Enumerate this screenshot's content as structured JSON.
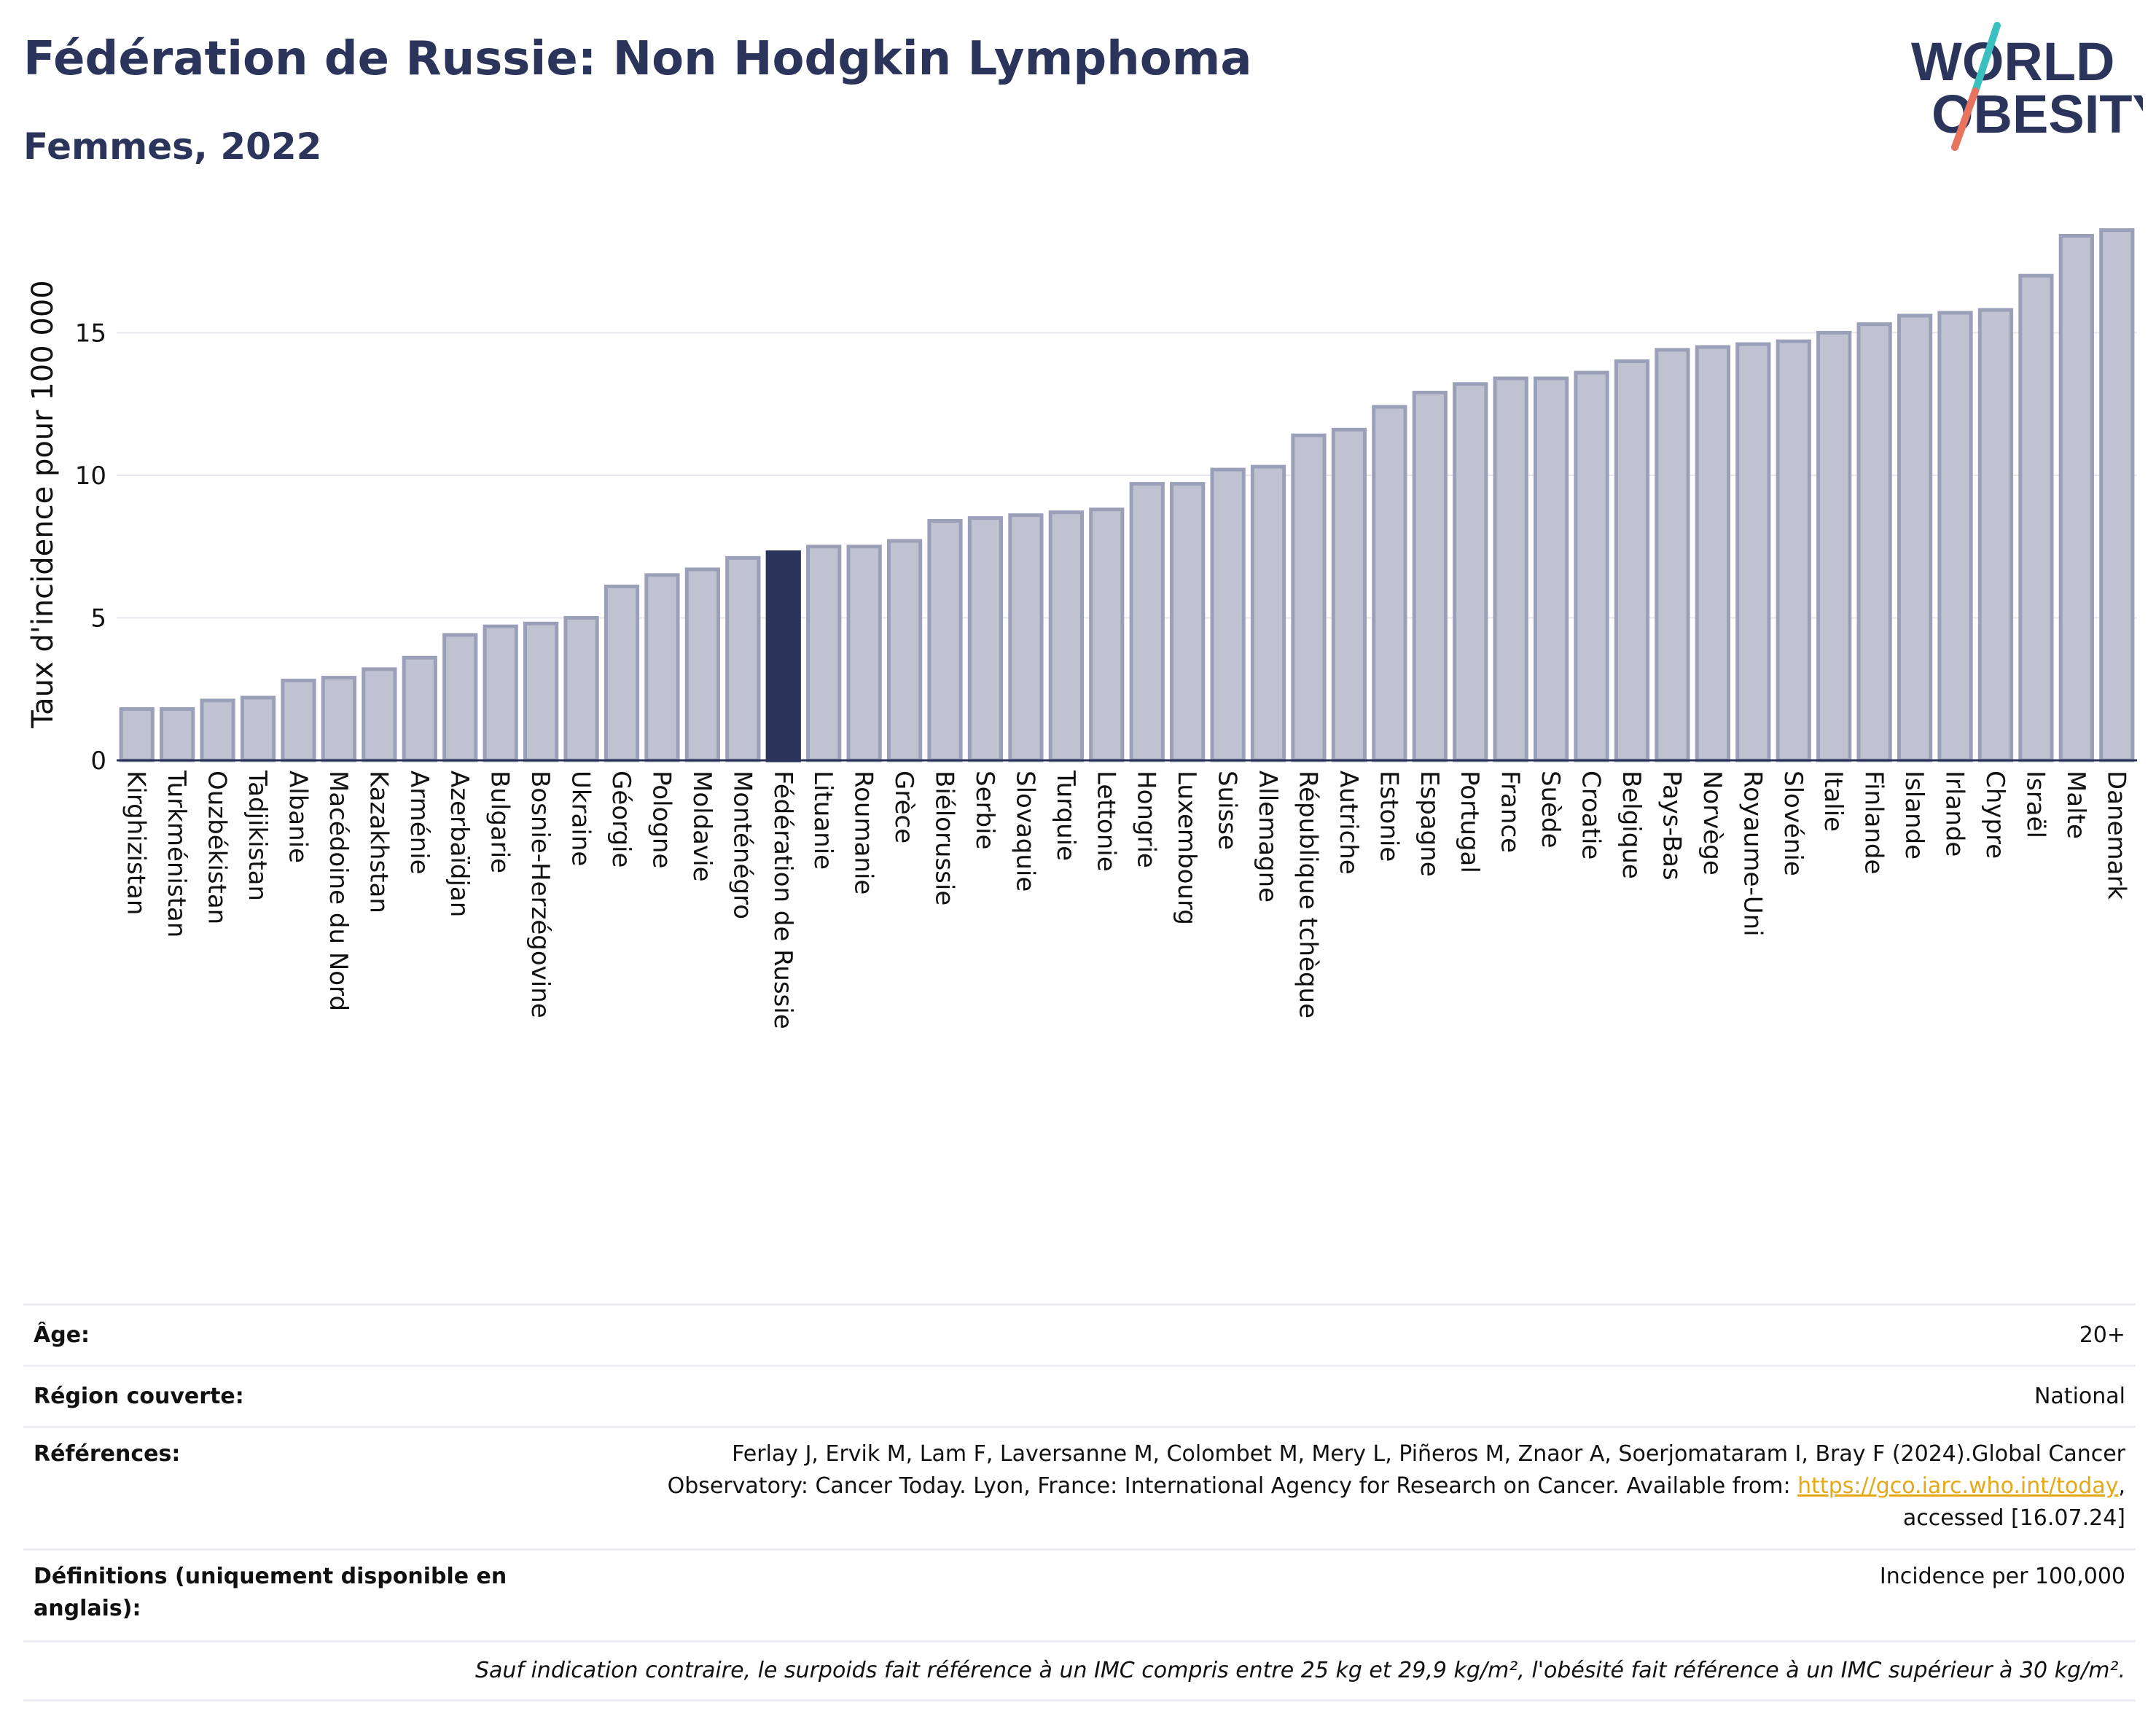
{
  "header": {
    "title": "Fédération de Russie: Non Hodgkin Lymphoma",
    "subtitle": "Femmes, 2022",
    "logo_line1": "WORLD",
    "logo_line2": "OBESITY"
  },
  "colors": {
    "bar": "#bfc3d1",
    "bar_stroke": "#9aa0b8",
    "highlight": "#2b355c",
    "title": "#2b355c",
    "link": "#e6a817",
    "logo_teal": "#3cbfbf",
    "logo_coral": "#e8735f"
  },
  "chart_data": {
    "type": "bar",
    "ylabel": "Taux d'incidence pour 100 000",
    "ylim": [
      0,
      19
    ],
    "yticks": [
      0,
      5,
      10,
      15
    ],
    "grid": true,
    "highlight": "Fédération de Russie",
    "categories": [
      "Kirghizistan",
      "Turkménistan",
      "Ouzbékistan",
      "Tadjikistan",
      "Albanie",
      "Macédoine du Nord",
      "Kazakhstan",
      "Arménie",
      "Azerbaïdjan",
      "Bulgarie",
      "Bosnie-Herzégovine",
      "Ukraine",
      "Géorgie",
      "Pologne",
      "Moldavie",
      "Monténégro",
      "Fédération de Russie",
      "Lituanie",
      "Roumanie",
      "Grèce",
      "Biélorussie",
      "Serbie",
      "Slovaquie",
      "Turquie",
      "Lettonie",
      "Hongrie",
      "Luxembourg",
      "Suisse",
      "Allemagne",
      "République tchèque",
      "Autriche",
      "Estonie",
      "Espagne",
      "Portugal",
      "France",
      "Suède",
      "Croatie",
      "Belgique",
      "Pays-Bas",
      "Norvège",
      "Royaume-Uni",
      "Slovénie",
      "Italie",
      "Finlande",
      "Islande",
      "Irlande",
      "Chypre",
      "Israël",
      "Malte",
      "Danemark"
    ],
    "values": [
      1.8,
      1.8,
      2.1,
      2.2,
      2.8,
      2.9,
      3.2,
      3.6,
      4.4,
      4.7,
      4.8,
      5.0,
      6.1,
      6.5,
      6.7,
      7.1,
      7.3,
      7.5,
      7.5,
      7.7,
      8.4,
      8.5,
      8.6,
      8.7,
      8.8,
      9.7,
      9.7,
      10.2,
      10.3,
      11.4,
      11.6,
      12.4,
      12.9,
      13.2,
      13.4,
      13.4,
      13.6,
      14.0,
      14.4,
      14.5,
      14.6,
      14.7,
      15.0,
      15.3,
      15.6,
      15.7,
      15.8,
      17.0,
      18.4,
      18.6
    ]
  },
  "info": {
    "age_label": "Âge:",
    "age_value": "20+",
    "region_label": "Région couverte:",
    "region_value": "National",
    "refs_label": "Références:",
    "refs_line1": "Ferlay J, Ervik M, Lam F, Laversanne M, Colombet M, Mery L, Piñeros M, Znaor A, Soerjomataram I, Bray F (2024).Global Cancer",
    "refs_line2": "Observatory: Cancer Today. Lyon, France: International Agency for Research on Cancer. Available from:",
    "refs_link": "https://gco.iarc.who.int/today",
    "refs_line2_end": ",",
    "refs_line3": "accessed [16.07.24]",
    "defs_label": "Définitions (uniquement disponible en anglais):",
    "defs_value": "Incidence per 100,000",
    "note": "Sauf indication contraire, le surpoids fait référence à un IMC compris entre 25 kg et 29,9 kg/m², l'obésité fait référence à un IMC supérieur à 30 kg/m²."
  }
}
